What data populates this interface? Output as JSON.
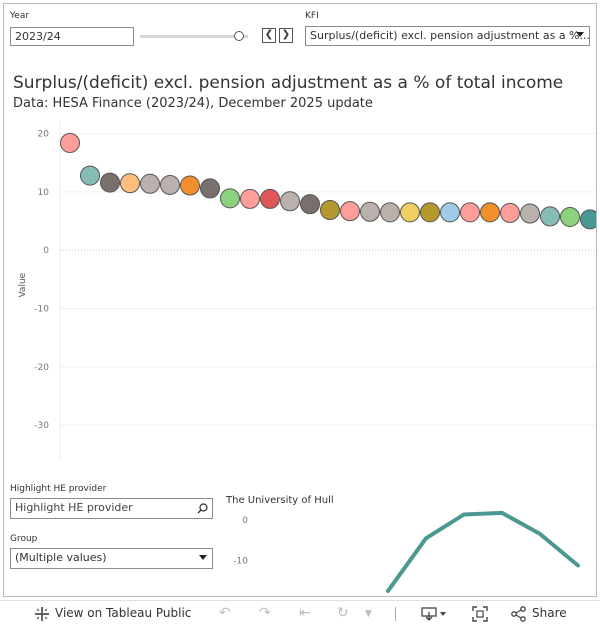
{
  "filters": {
    "year_label": "Year",
    "year_value": "2023/24",
    "year_slider_fraction": 0.92,
    "kfi_label": "KFI",
    "kfi_value": "Surplus/(deficit) excl. pension adjustment as a %..."
  },
  "header": {
    "title": "Surplus/(deficit) excl. pension adjustment as a % of total income",
    "subtitle": "Data: HESA Finance (2023/24), December 2025 update"
  },
  "chart_data": [
    {
      "type": "scatter",
      "ylabel": "Value",
      "yticks": [
        20,
        10,
        0,
        -10,
        -20,
        -30
      ],
      "ylim": [
        -36,
        22
      ],
      "grid": true,
      "points": [
        {
          "x": 1,
          "y": 18.4,
          "color": "#ff9d9a"
        },
        {
          "x": 2,
          "y": 12.8,
          "color": "#86bcb6"
        },
        {
          "x": 3,
          "y": 11.6,
          "color": "#79706e"
        },
        {
          "x": 4,
          "y": 11.5,
          "color": "#ffbe7d"
        },
        {
          "x": 5,
          "y": 11.4,
          "color": "#bab0ac"
        },
        {
          "x": 6,
          "y": 11.2,
          "color": "#bab0ac"
        },
        {
          "x": 7,
          "y": 11.1,
          "color": "#f28e2b"
        },
        {
          "x": 8,
          "y": 10.6,
          "color": "#79706e"
        },
        {
          "x": 9,
          "y": 8.9,
          "color": "#8cd17d"
        },
        {
          "x": 10,
          "y": 8.8,
          "color": "#ff9d9a"
        },
        {
          "x": 11,
          "y": 8.8,
          "color": "#e15759"
        },
        {
          "x": 12,
          "y": 8.4,
          "color": "#bab0ac"
        },
        {
          "x": 13,
          "y": 7.9,
          "color": "#79706e"
        },
        {
          "x": 14,
          "y": 6.9,
          "color": "#b6992d"
        },
        {
          "x": 15,
          "y": 6.7,
          "color": "#ff9d9a"
        },
        {
          "x": 16,
          "y": 6.6,
          "color": "#bab0ac"
        },
        {
          "x": 17,
          "y": 6.5,
          "color": "#bab0ac"
        },
        {
          "x": 18,
          "y": 6.5,
          "color": "#f1ce63"
        },
        {
          "x": 19,
          "y": 6.5,
          "color": "#b6992d"
        },
        {
          "x": 20,
          "y": 6.5,
          "color": "#a0cbe8"
        },
        {
          "x": 21,
          "y": 6.5,
          "color": "#ff9d9a"
        },
        {
          "x": 22,
          "y": 6.5,
          "color": "#f28e2b"
        },
        {
          "x": 23,
          "y": 6.4,
          "color": "#ff9d9a"
        },
        {
          "x": 24,
          "y": 6.3,
          "color": "#bab0ac"
        },
        {
          "x": 25,
          "y": 5.8,
          "color": "#86bcb6"
        },
        {
          "x": 26,
          "y": 5.7,
          "color": "#8cd17d"
        },
        {
          "x": 27,
          "y": 5.3,
          "color": "#499894"
        }
      ]
    },
    {
      "type": "line",
      "title": "The University of Hull",
      "yticks": [
        0,
        -10
      ],
      "ylim": [
        -18,
        3
      ],
      "series": [
        {
          "color": "#4b9891",
          "values": [
            -17.5,
            -4.5,
            1.4,
            1.8,
            -3.4,
            -11.2
          ]
        }
      ]
    }
  ],
  "highlight": {
    "label": "Highlight HE provider",
    "placeholder": "Highlight HE provider"
  },
  "group": {
    "label": "Group",
    "value": "(Multiple values)"
  },
  "toolbar": {
    "view_label": "View on Tableau Public",
    "share_label": "Share"
  }
}
